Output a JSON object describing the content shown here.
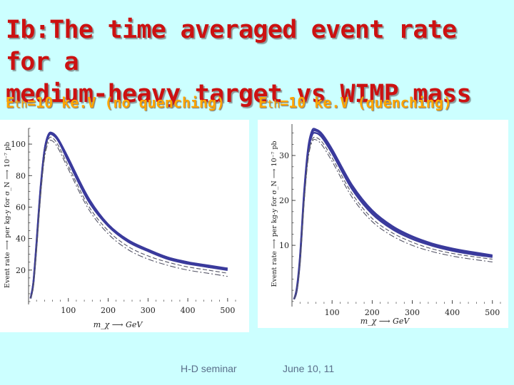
{
  "slide": {
    "title_line1": "Ib:The time averaged event rate for a",
    "title_line2": "medium-heavy target vs WIMP mass",
    "accent_color": "#cc1111",
    "subhead_color": "#ffa500"
  },
  "panels": {
    "left": {
      "label_E": "E",
      "label_sub": "th",
      "label_rest": "=10 ke.V (no quenching)"
    },
    "right": {
      "label_E": "E",
      "label_sub": "th",
      "label_rest": "=10 ke.V (quenching)"
    }
  },
  "footer": {
    "seminar": "H-D seminar",
    "date": "June 10, 11"
  },
  "chart_data": [
    {
      "type": "line",
      "title": "Eth=10 ke.V (no quenching)",
      "xlabel": "m_χ ⟶ GeV",
      "ylabel": "Event rate ⟶ per kg-y for σ_N ⟶ 10⁻⁷ pb",
      "xlim": [
        0,
        520
      ],
      "ylim": [
        0,
        110
      ],
      "xticks": [
        100,
        200,
        300,
        400,
        500
      ],
      "yticks": [
        20,
        40,
        60,
        80,
        100
      ],
      "series": [
        {
          "name": "solid-1",
          "style": "solid",
          "x": [
            5,
            12,
            20,
            30,
            40,
            50,
            60,
            75,
            100,
            150,
            200,
            250,
            300,
            350,
            400,
            450,
            500
          ],
          "y": [
            2,
            12,
            38,
            72,
            96,
            106,
            107,
            103,
            91,
            66,
            49,
            39,
            33,
            28,
            25,
            23,
            21
          ]
        },
        {
          "name": "solid-2",
          "style": "solid",
          "x": [
            5,
            12,
            20,
            30,
            40,
            50,
            60,
            75,
            100,
            150,
            200,
            250,
            300,
            350,
            400,
            450,
            500
          ],
          "y": [
            2,
            11,
            36,
            70,
            95,
            105,
            106,
            102,
            89,
            64,
            48,
            38,
            32,
            27,
            24,
            22,
            20
          ]
        },
        {
          "name": "solid-3",
          "style": "solid",
          "x": [
            5,
            12,
            20,
            30,
            40,
            50,
            60,
            75,
            100,
            150,
            200,
            250,
            300,
            350,
            400,
            450,
            500
          ],
          "y": [
            2,
            12,
            37,
            71,
            96,
            106,
            106,
            102,
            90,
            65,
            49,
            39,
            33,
            28,
            25,
            22,
            21
          ]
        },
        {
          "name": "dashed",
          "style": "dashed",
          "x": [
            5,
            12,
            20,
            30,
            40,
            50,
            60,
            75,
            100,
            150,
            200,
            250,
            300,
            350,
            400,
            450,
            500
          ],
          "y": [
            2,
            10,
            34,
            68,
            93,
            103,
            104,
            99,
            86,
            61,
            45,
            35,
            29,
            25,
            22,
            20,
            18
          ]
        },
        {
          "name": "dash-dot",
          "style": "dashdot",
          "x": [
            5,
            12,
            20,
            30,
            40,
            50,
            60,
            75,
            100,
            150,
            200,
            250,
            300,
            350,
            400,
            450,
            500
          ],
          "y": [
            2,
            9,
            32,
            66,
            91,
            101,
            102,
            97,
            84,
            59,
            43,
            33,
            27,
            23,
            20,
            18,
            16
          ]
        }
      ]
    },
    {
      "type": "line",
      "title": "Eth=10 ke.V (quenching)",
      "xlabel": "m_χ ⟶ GeV",
      "ylabel": "Event rate ⟶ per kg-y for σ_N ⟶ 10⁻⁷ pb",
      "xlim": [
        0,
        520
      ],
      "ylim": [
        -3,
        37
      ],
      "xticks": [
        100,
        200,
        300,
        400,
        500
      ],
      "yticks": [
        10,
        20,
        30
      ],
      "series": [
        {
          "name": "solid-1",
          "style": "solid",
          "x": [
            5,
            12,
            20,
            30,
            40,
            50,
            60,
            75,
            100,
            150,
            200,
            250,
            300,
            350,
            400,
            450,
            500
          ],
          "y": [
            -2,
            0,
            7,
            21,
            31,
            35,
            35.5,
            34.5,
            31,
            23,
            17.5,
            14,
            11.8,
            10.2,
            9.1,
            8.3,
            7.6
          ]
        },
        {
          "name": "solid-2",
          "style": "solid",
          "x": [
            5,
            12,
            20,
            30,
            40,
            50,
            60,
            75,
            100,
            150,
            200,
            250,
            300,
            350,
            400,
            450,
            500
          ],
          "y": [
            -2,
            0,
            6.5,
            20.5,
            30.5,
            34.5,
            35,
            34,
            30.5,
            22.5,
            17,
            13.6,
            11.4,
            9.9,
            8.8,
            8,
            7.4
          ]
        },
        {
          "name": "solid-3",
          "style": "solid",
          "x": [
            5,
            12,
            20,
            30,
            40,
            50,
            60,
            75,
            100,
            150,
            200,
            250,
            300,
            350,
            400,
            450,
            500
          ],
          "y": [
            -2,
            0.5,
            7.5,
            21.5,
            31.5,
            35.5,
            35.8,
            34.8,
            31.4,
            23.4,
            17.8,
            14.3,
            12,
            10.4,
            9.3,
            8.5,
            7.8
          ]
        },
        {
          "name": "dashed",
          "style": "dashed",
          "x": [
            5,
            12,
            20,
            30,
            40,
            50,
            60,
            75,
            100,
            150,
            200,
            250,
            300,
            350,
            400,
            450,
            500
          ],
          "y": [
            -2,
            0,
            6,
            19.5,
            29.5,
            33.5,
            34,
            33,
            29.5,
            21.5,
            16,
            12.8,
            10.7,
            9.2,
            8.2,
            7.5,
            6.9
          ]
        },
        {
          "name": "dash-dot",
          "style": "dashdot",
          "x": [
            5,
            12,
            20,
            30,
            40,
            50,
            60,
            75,
            100,
            150,
            200,
            250,
            300,
            350,
            400,
            450,
            500
          ],
          "y": [
            -2,
            0,
            5.5,
            19,
            29,
            33,
            33.5,
            32.3,
            28.7,
            20.7,
            15.3,
            12.1,
            10,
            8.6,
            7.6,
            6.9,
            6.3
          ]
        }
      ]
    }
  ]
}
